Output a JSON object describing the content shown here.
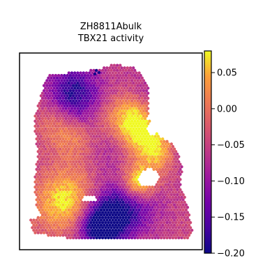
{
  "chart_data": {
    "type": "scatter",
    "subtype": "spatial-hexbin",
    "title_line1": "ZH8811Abulk",
    "title_line2": "TBX21 activity",
    "xlabel": "",
    "ylabel": "",
    "x_ticks_shown": false,
    "y_ticks_shown": false,
    "colorbar": {
      "colormap": "plasma",
      "range": [
        -0.2,
        0.08
      ],
      "ticks": [
        0.05,
        0.0,
        -0.05,
        -0.1,
        -0.15,
        -0.2
      ],
      "tick_labels": [
        "0.05",
        "0.00",
        "−0.05",
        "−0.10",
        "−0.15",
        "−0.20"
      ],
      "location": "right"
    },
    "value_range_observed": [
      -0.2,
      0.08
    ],
    "grid": false,
    "legend": "none"
  }
}
